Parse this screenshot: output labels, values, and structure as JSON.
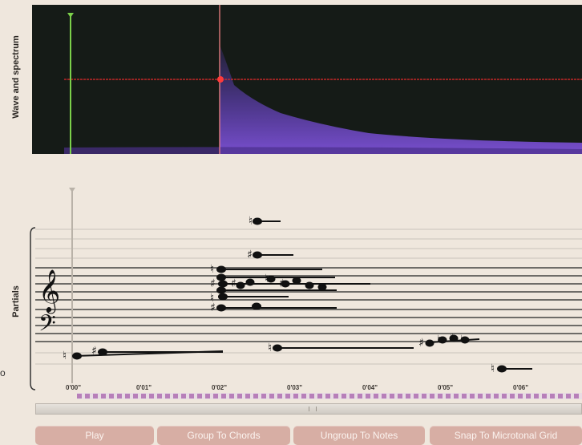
{
  "panels": {
    "wave_label": "Wave and spectrum",
    "partials_label": "Partials"
  },
  "timeline": {
    "ticks": [
      "0'00\"",
      "0'01\"",
      "0'02\"",
      "0'03\"",
      "0'04\"",
      "0'05\"",
      "0'06\""
    ]
  },
  "buttons": {
    "play": "Play",
    "group": "Group To Chords",
    "ungroup": "Ungroup To Notes",
    "snap": "Snap To Microtonal Grid"
  },
  "side_fragment": "o",
  "colors": {
    "spectrum_bg": "#151b17",
    "spectrum_purple": "#6a45c9",
    "red_line": "#e02a2a",
    "cursor_green": "#7bd04a",
    "button_bg": "#d7aea4"
  }
}
